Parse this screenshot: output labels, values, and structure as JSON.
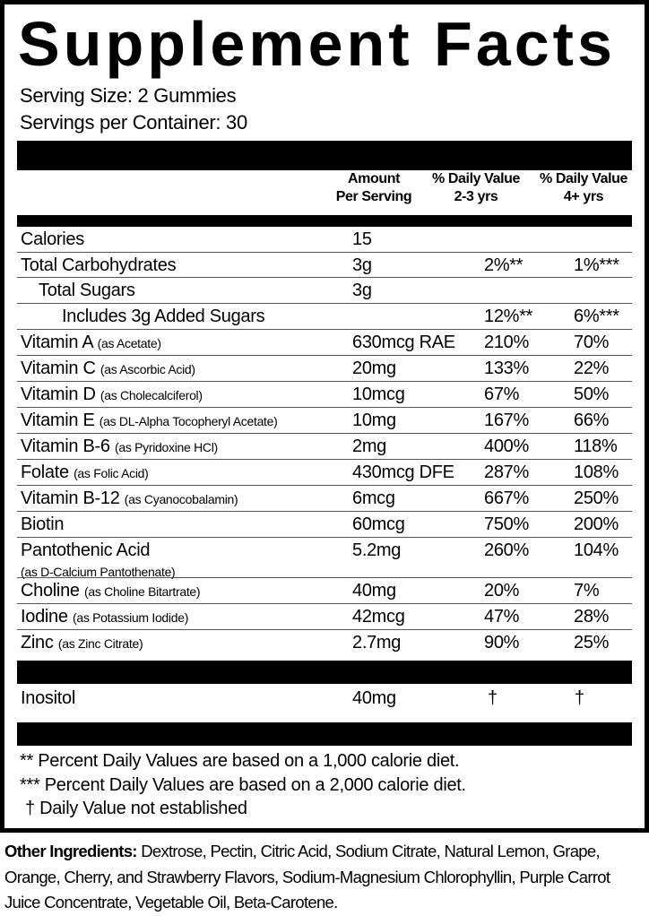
{
  "title": "Supplement Facts",
  "serving_size": "Serving Size: 2 Gummies",
  "servings_per_container": "Servings per Container: 30",
  "headers": {
    "amount": [
      "Amount",
      "Per Serving"
    ],
    "dv1": [
      "% Daily Value",
      "2-3 yrs"
    ],
    "dv2": [
      "% Daily Value",
      "4+ yrs"
    ]
  },
  "rows": [
    {
      "name": "Calories",
      "sub": "",
      "amount": "15",
      "dv1": "",
      "dv2": ""
    },
    {
      "name": "Total Carbohydrates",
      "sub": "",
      "amount": "3g",
      "dv1": "2%**",
      "dv2": "1%***"
    },
    {
      "name": "Total Sugars",
      "sub": "",
      "amount": "3g",
      "dv1": "",
      "dv2": ""
    },
    {
      "name": "Includes 3g Added Sugars",
      "sub": "",
      "amount": "",
      "dv1": "12%**",
      "dv2": "6%***"
    },
    {
      "name": "Vitamin A",
      "sub": "(as Acetate)",
      "amount": "630mcg RAE",
      "dv1": "210%",
      "dv2": "70%"
    },
    {
      "name": "Vitamin C",
      "sub": "(as Ascorbic Acid)",
      "amount": "20mg",
      "dv1": "133%",
      "dv2": "22%"
    },
    {
      "name": "Vitamin D",
      "sub": "(as Cholecalciferol)",
      "amount": "10mcg",
      "dv1": "67%",
      "dv2": "50%"
    },
    {
      "name": "Vitamin E",
      "sub": "(as DL-Alpha Tocopheryl Acetate)",
      "amount": "10mg",
      "dv1": "167%",
      "dv2": "66%"
    },
    {
      "name": "Vitamin B-6",
      "sub": "(as Pyridoxine HCl)",
      "amount": "2mg",
      "dv1": "400%",
      "dv2": "118%"
    },
    {
      "name": "Folate",
      "sub": "(as Folic Acid)",
      "amount": "430mcg DFE",
      "dv1": "287%",
      "dv2": "108%"
    },
    {
      "name": "Vitamin B-12",
      "sub": "(as Cyanocobalamin)",
      "amount": "6mcg",
      "dv1": "667%",
      "dv2": "250%"
    },
    {
      "name": "Biotin",
      "sub": "",
      "amount": "60mcg",
      "dv1": "750%",
      "dv2": "200%"
    },
    {
      "name": "Pantothenic Acid",
      "sub": "(as D-Calcium Pantothenate)",
      "amount": "5.2mg",
      "dv1": "260%",
      "dv2": "104%"
    },
    {
      "name": "Choline",
      "sub": "(as Choline Bitartrate)",
      "amount": "40mg",
      "dv1": "20%",
      "dv2": "7%"
    },
    {
      "name": "Iodine",
      "sub": "(as Potassium Iodide)",
      "amount": "42mcg",
      "dv1": "47%",
      "dv2": "28%"
    },
    {
      "name": "Zinc",
      "sub": "(as Zinc Citrate)",
      "amount": "2.7mg",
      "dv1": "90%",
      "dv2": "25%"
    }
  ],
  "other_rows": [
    {
      "name": "Inositol",
      "amount": "40mg",
      "dv1": "†",
      "dv2": "†"
    }
  ],
  "footnotes": [
    "** Percent Daily Values are based on a 1,000 calorie diet.",
    "*** Percent Daily Values are based on a 2,000 calorie diet.",
    "† Daily Value not established"
  ],
  "other_ingredients": {
    "label": "Other Ingredients:",
    "text": " Dextrose, Pectin, Citric Acid, Sodium Citrate, Natural Lemon, Grape, Orange, Cherry, and Strawberry Flavors, Sodium-Magnesium  Chlorophyllin, Purple Carrot Juice Concentrate, Vegetable Oil, Beta-Carotene."
  }
}
